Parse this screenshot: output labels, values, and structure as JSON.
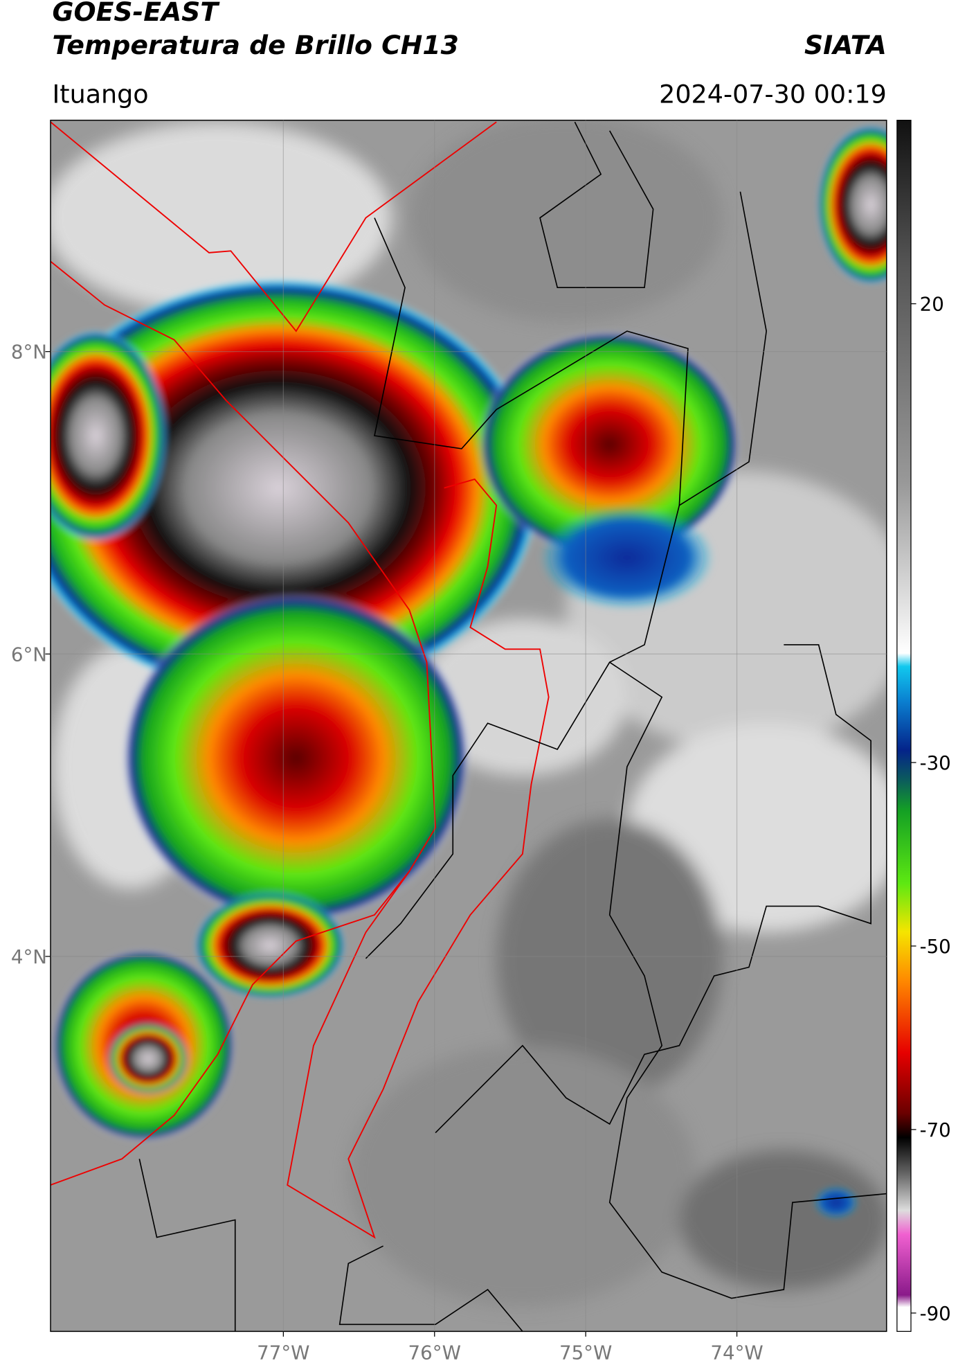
{
  "header": {
    "title": "GOES-EAST",
    "subtitle": "Temperatura de Brillo CH13",
    "source": "SIATA",
    "location": "Ituango",
    "datetime": "2024-07-30 00:19"
  },
  "map": {
    "xlim": [
      -78.54,
      -73.01
    ],
    "ylim": [
      1.52,
      9.53
    ],
    "xticks": [
      {
        "value": -77,
        "label": "77°W"
      },
      {
        "value": -76,
        "label": "76°W"
      },
      {
        "value": -75,
        "label": "75°W"
      },
      {
        "value": -74,
        "label": "74°W"
      }
    ],
    "yticks": [
      {
        "value": 8,
        "label": "8°N"
      },
      {
        "value": 6,
        "label": "6°N"
      },
      {
        "value": 4,
        "label": "4°N"
      }
    ],
    "grid": true
  },
  "colorbar": {
    "lim": [
      -92,
      40
    ],
    "ticks": [
      20,
      -30,
      -50,
      -70,
      -90
    ]
  }
}
